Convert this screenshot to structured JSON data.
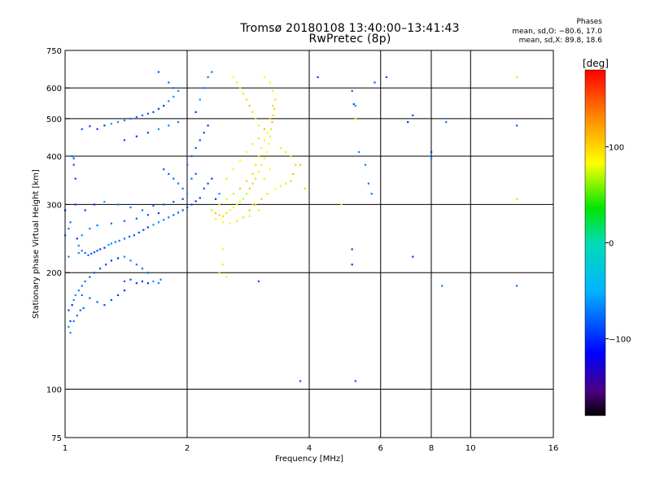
{
  "header": {
    "title_line1": "Tromsø 20180108 13:40:00–13:41:43",
    "title_line2": "RwPretec (8p)",
    "phase_heading": "Phases",
    "phase_o": "mean, sd,O: −80.6, 17.0",
    "phase_x": "mean, sd,X:  89.8, 18.6"
  },
  "colorbar": {
    "label": "[deg]",
    "ticks": [
      "100",
      "0",
      "−100"
    ],
    "range": [
      -180,
      180
    ],
    "tick_values": [
      100,
      0,
      -100
    ]
  },
  "chart_data": {
    "type": "scatter",
    "xlabel": "Frequency [MHz]",
    "ylabel": "Stationary phase Virtual Height [km]",
    "xscale": "log",
    "yscale": "log",
    "xlim": [
      1,
      16
    ],
    "ylim": [
      75,
      750
    ],
    "x_ticks": [
      1,
      2,
      4,
      6,
      8,
      10,
      16
    ],
    "x_tick_labels": [
      "1",
      "2",
      "4",
      "6",
      "8",
      "10",
      "16"
    ],
    "y_ticks": [
      75,
      100,
      200,
      300,
      400,
      500,
      600,
      750
    ],
    "y_tick_labels": [
      "75",
      "100",
      "200",
      "300",
      "400",
      "500",
      "600",
      "750"
    ],
    "grid": true,
    "color_by": "phase [deg]",
    "series": [
      {
        "trace": "O",
        "mean_phase": -80.6,
        "points": [
          [
            1.0,
            290
          ],
          [
            1.0,
            250
          ],
          [
            1.02,
            220
          ],
          [
            1.02,
            260
          ],
          [
            1.03,
            270
          ],
          [
            1.04,
            400
          ],
          [
            1.05,
            395
          ],
          [
            1.05,
            380
          ],
          [
            1.06,
            350
          ],
          [
            1.06,
            300
          ],
          [
            1.07,
            245
          ],
          [
            1.08,
            235
          ],
          [
            1.08,
            225
          ],
          [
            1.1,
            228
          ],
          [
            1.12,
            225
          ],
          [
            1.14,
            222
          ],
          [
            1.16,
            224
          ],
          [
            1.18,
            226
          ],
          [
            1.2,
            228
          ],
          [
            1.22,
            230
          ],
          [
            1.25,
            232
          ],
          [
            1.28,
            236
          ],
          [
            1.3,
            238
          ],
          [
            1.33,
            240
          ],
          [
            1.36,
            242
          ],
          [
            1.4,
            245
          ],
          [
            1.44,
            248
          ],
          [
            1.48,
            250
          ],
          [
            1.52,
            254
          ],
          [
            1.56,
            258
          ],
          [
            1.6,
            262
          ],
          [
            1.65,
            266
          ],
          [
            1.7,
            270
          ],
          [
            1.75,
            274
          ],
          [
            1.8,
            278
          ],
          [
            1.85,
            282
          ],
          [
            1.9,
            286
          ],
          [
            1.95,
            290
          ],
          [
            2.0,
            295
          ],
          [
            2.05,
            300
          ],
          [
            2.1,
            306
          ],
          [
            2.15,
            312
          ],
          [
            1.1,
            250
          ],
          [
            1.15,
            260
          ],
          [
            1.2,
            265
          ],
          [
            1.3,
            268
          ],
          [
            1.4,
            272
          ],
          [
            1.5,
            276
          ],
          [
            1.6,
            282
          ],
          [
            1.7,
            285
          ],
          [
            1.12,
            290
          ],
          [
            1.18,
            300
          ],
          [
            1.25,
            305
          ],
          [
            1.35,
            300
          ],
          [
            1.45,
            295
          ],
          [
            1.55,
            290
          ],
          [
            1.65,
            298
          ],
          [
            1.75,
            300
          ],
          [
            1.85,
            305
          ],
          [
            1.95,
            310
          ],
          [
            1.2,
            470
          ],
          [
            1.25,
            480
          ],
          [
            1.3,
            485
          ],
          [
            1.35,
            490
          ],
          [
            1.4,
            495
          ],
          [
            1.45,
            500
          ],
          [
            1.5,
            505
          ],
          [
            1.55,
            510
          ],
          [
            1.6,
            515
          ],
          [
            1.65,
            520
          ],
          [
            1.7,
            530
          ],
          [
            1.75,
            540
          ],
          [
            1.8,
            555
          ],
          [
            1.85,
            570
          ],
          [
            1.9,
            590
          ],
          [
            1.85,
            600
          ],
          [
            1.8,
            620
          ],
          [
            1.7,
            660
          ],
          [
            1.1,
            470
          ],
          [
            1.15,
            478
          ],
          [
            1.4,
            440
          ],
          [
            1.5,
            450
          ],
          [
            1.6,
            460
          ],
          [
            1.7,
            470
          ],
          [
            1.8,
            480
          ],
          [
            1.9,
            490
          ],
          [
            2.0,
            380
          ],
          [
            2.05,
            400
          ],
          [
            2.1,
            420
          ],
          [
            2.15,
            440
          ],
          [
            2.2,
            460
          ],
          [
            2.25,
            480
          ],
          [
            2.1,
            520
          ],
          [
            2.15,
            560
          ],
          [
            2.2,
            600
          ],
          [
            2.25,
            640
          ],
          [
            2.3,
            660
          ],
          [
            2.05,
            350
          ],
          [
            2.1,
            360
          ],
          [
            2.2,
            330
          ],
          [
            2.25,
            340
          ],
          [
            2.3,
            350
          ],
          [
            2.35,
            310
          ],
          [
            2.4,
            320
          ],
          [
            2.0,
            320
          ],
          [
            1.95,
            330
          ],
          [
            1.9,
            340
          ],
          [
            1.85,
            350
          ],
          [
            1.8,
            360
          ],
          [
            1.75,
            370
          ],
          [
            1.02,
            160
          ],
          [
            1.03,
            150
          ],
          [
            1.04,
            165
          ],
          [
            1.05,
            170
          ],
          [
            1.06,
            175
          ],
          [
            1.08,
            180
          ],
          [
            1.1,
            185
          ],
          [
            1.12,
            190
          ],
          [
            1.15,
            195
          ],
          [
            1.18,
            200
          ],
          [
            1.22,
            205
          ],
          [
            1.26,
            210
          ],
          [
            1.3,
            215
          ],
          [
            1.35,
            218
          ],
          [
            1.4,
            220
          ],
          [
            1.45,
            215
          ],
          [
            1.5,
            210
          ],
          [
            1.55,
            205
          ],
          [
            1.6,
            200
          ],
          [
            1.4,
            190
          ],
          [
            1.45,
            192
          ],
          [
            1.5,
            188
          ],
          [
            1.55,
            190
          ],
          [
            1.6,
            188
          ],
          [
            1.65,
            190
          ],
          [
            1.7,
            188
          ],
          [
            1.72,
            192
          ],
          [
            1.1,
            175
          ],
          [
            1.15,
            172
          ],
          [
            1.2,
            168
          ],
          [
            1.25,
            165
          ],
          [
            1.3,
            170
          ],
          [
            1.35,
            175
          ],
          [
            1.4,
            180
          ],
          [
            1.02,
            145
          ],
          [
            1.03,
            140
          ],
          [
            1.05,
            150
          ],
          [
            1.07,
            155
          ],
          [
            1.09,
            160
          ],
          [
            1.11,
            162
          ],
          [
            5.1,
            590
          ],
          [
            5.15,
            545
          ],
          [
            5.1,
            230
          ],
          [
            5.1,
            210
          ],
          [
            5.2,
            540
          ],
          [
            5.3,
            410
          ],
          [
            5.5,
            380
          ],
          [
            5.6,
            340
          ],
          [
            5.7,
            320
          ],
          [
            5.8,
            620
          ],
          [
            5.2,
            105
          ],
          [
            7.2,
            510
          ],
          [
            7.2,
            220
          ],
          [
            7.0,
            490
          ],
          [
            8.0,
            410
          ],
          [
            8.0,
            395
          ],
          [
            8.5,
            185
          ],
          [
            8.7,
            490
          ],
          [
            13.0,
            185
          ],
          [
            13.0,
            480
          ],
          [
            3.0,
            190
          ],
          [
            3.8,
            105
          ],
          [
            6.2,
            640
          ],
          [
            4.2,
            640
          ]
        ]
      },
      {
        "trace": "X",
        "mean_phase": 89.8,
        "points": [
          [
            2.3,
            290
          ],
          [
            2.35,
            285
          ],
          [
            2.4,
            282
          ],
          [
            2.45,
            280
          ],
          [
            2.5,
            285
          ],
          [
            2.55,
            290
          ],
          [
            2.6,
            295
          ],
          [
            2.65,
            300
          ],
          [
            2.7,
            305
          ],
          [
            2.75,
            310
          ],
          [
            2.8,
            320
          ],
          [
            2.85,
            330
          ],
          [
            2.9,
            340
          ],
          [
            2.95,
            350
          ],
          [
            3.0,
            365
          ],
          [
            3.05,
            380
          ],
          [
            3.1,
            395
          ],
          [
            3.15,
            410
          ],
          [
            3.18,
            430
          ],
          [
            3.2,
            450
          ],
          [
            3.22,
            470
          ],
          [
            3.24,
            490
          ],
          [
            3.26,
            510
          ],
          [
            3.28,
            530
          ],
          [
            3.3,
            560
          ],
          [
            3.25,
            590
          ],
          [
            3.2,
            620
          ],
          [
            3.1,
            640
          ],
          [
            2.4,
            300
          ],
          [
            2.5,
            310
          ],
          [
            2.6,
            320
          ],
          [
            2.7,
            330
          ],
          [
            2.8,
            345
          ],
          [
            2.9,
            360
          ],
          [
            2.95,
            380
          ],
          [
            3.0,
            400
          ],
          [
            3.05,
            420
          ],
          [
            3.1,
            440
          ],
          [
            3.15,
            460
          ],
          [
            3.0,
            480
          ],
          [
            2.95,
            500
          ],
          [
            2.9,
            520
          ],
          [
            2.85,
            540
          ],
          [
            2.8,
            560
          ],
          [
            2.75,
            580
          ],
          [
            2.7,
            600
          ],
          [
            2.65,
            620
          ],
          [
            2.6,
            640
          ],
          [
            3.3,
            330
          ],
          [
            3.4,
            335
          ],
          [
            3.5,
            340
          ],
          [
            3.6,
            345
          ],
          [
            3.65,
            360
          ],
          [
            3.7,
            380
          ],
          [
            3.6,
            400
          ],
          [
            3.5,
            410
          ],
          [
            3.4,
            420
          ],
          [
            2.35,
            275
          ],
          [
            2.45,
            270
          ],
          [
            2.55,
            268
          ],
          [
            2.65,
            272
          ],
          [
            2.75,
            278
          ],
          [
            2.85,
            290
          ],
          [
            2.95,
            300
          ],
          [
            3.05,
            310
          ],
          [
            3.15,
            320
          ],
          [
            2.5,
            350
          ],
          [
            2.6,
            370
          ],
          [
            2.7,
            390
          ],
          [
            2.8,
            410
          ],
          [
            2.9,
            430
          ],
          [
            3.0,
            445
          ],
          [
            3.1,
            470
          ],
          [
            3.2,
            500
          ],
          [
            3.25,
            540
          ],
          [
            2.4,
            200
          ],
          [
            2.45,
            210
          ],
          [
            2.45,
            230
          ],
          [
            2.5,
            195
          ],
          [
            4.8,
            300
          ],
          [
            5.2,
            500
          ],
          [
            13.0,
            640
          ],
          [
            13.0,
            310
          ],
          [
            3.8,
            380
          ],
          [
            3.9,
            330
          ],
          [
            2.9,
            300
          ],
          [
            3.0,
            290
          ],
          [
            2.85,
            280
          ],
          [
            3.1,
            350
          ],
          [
            3.2,
            370
          ]
        ]
      }
    ]
  }
}
